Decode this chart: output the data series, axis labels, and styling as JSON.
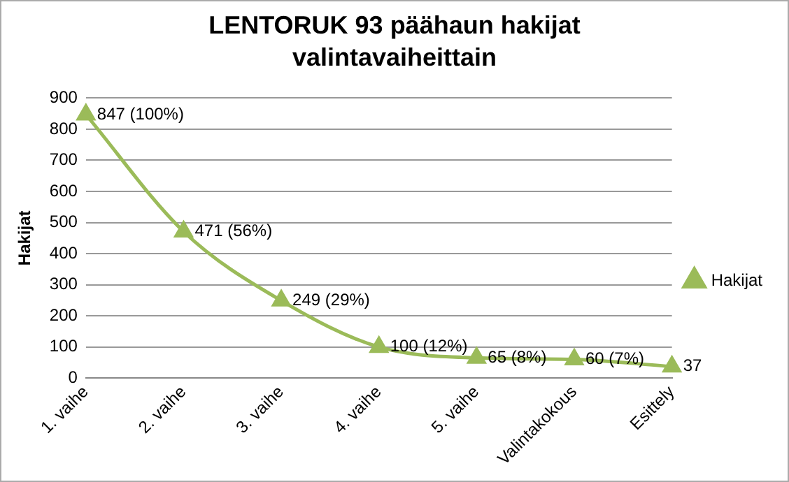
{
  "chart_data": {
    "type": "line",
    "title": "LENTORUK 93 päähaun hakijat valintavaiheittain",
    "ylabel": "Hakijat",
    "categories": [
      "1. vaihe",
      "2. vaihe",
      "3. vaihe",
      "4. vaihe",
      "5. vaihe",
      "Valintakokous",
      "Esittely"
    ],
    "series": [
      {
        "name": "Hakijat",
        "color": "#9bbb59",
        "values": [
          847,
          471,
          249,
          100,
          65,
          60,
          37
        ],
        "value_labels": [
          "847 (100%)",
          "471 (56%)",
          "249 (29%)",
          "100 (12%)",
          "65 (8%)",
          "60 (7%)",
          "37"
        ]
      }
    ],
    "ylim": [
      0,
      900
    ],
    "yticks": [
      0,
      100,
      200,
      300,
      400,
      500,
      600,
      700,
      800,
      900
    ],
    "grid": "y",
    "legend": "right",
    "marker": "triangle",
    "line_style": "solid"
  }
}
